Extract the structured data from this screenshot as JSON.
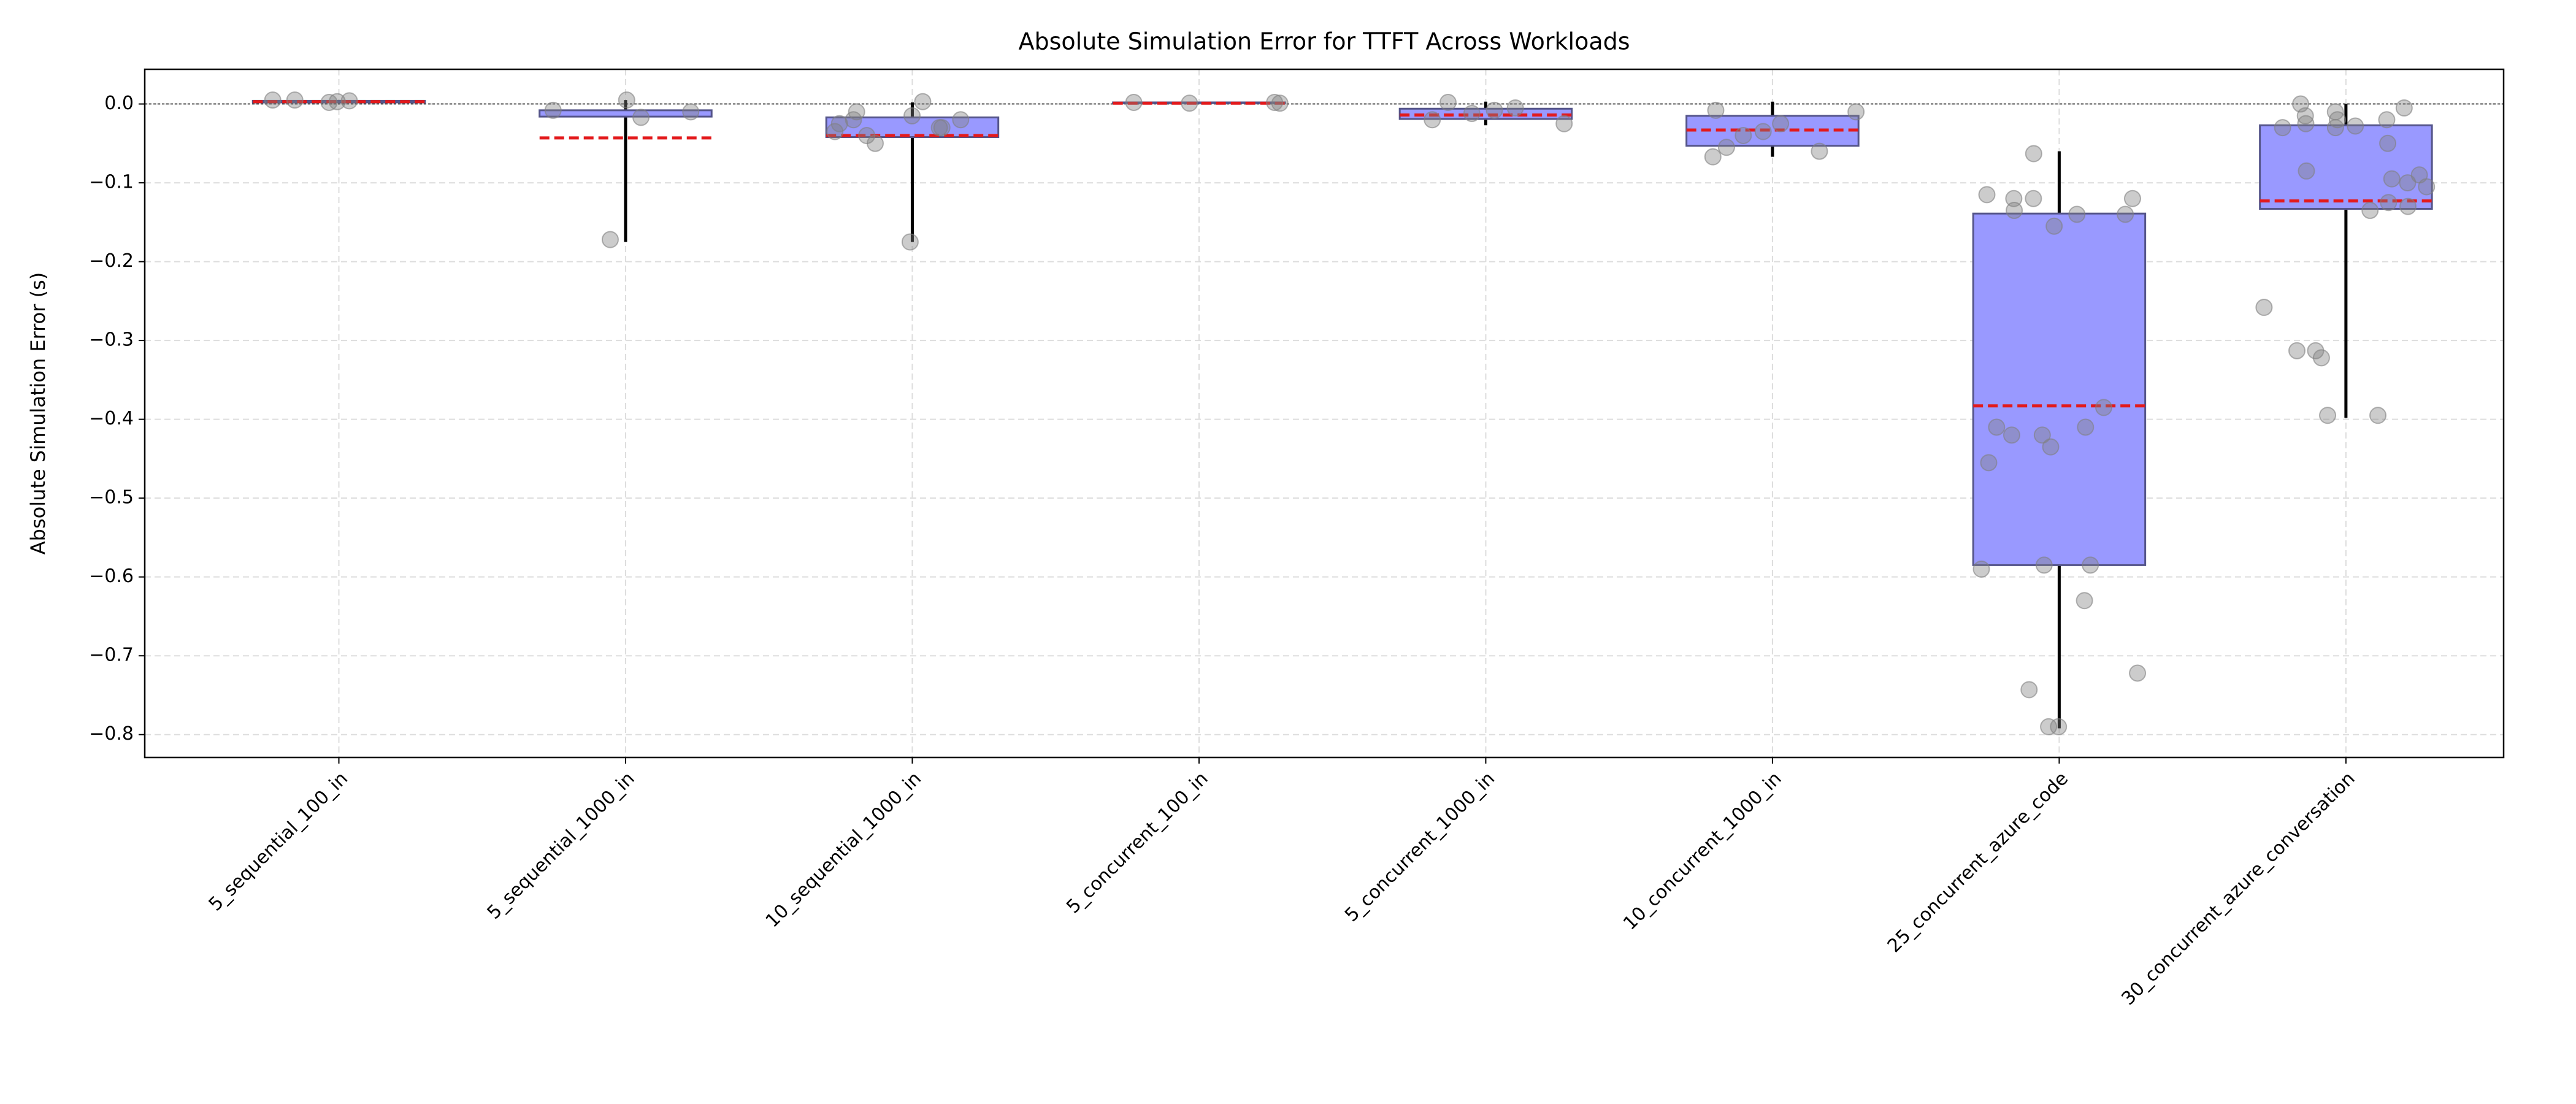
{
  "chart_data": {
    "type": "box",
    "title": "Absolute Simulation Error for TTFT Across Workloads",
    "ylabel": "Absolute Simulation Error (s)",
    "categories": [
      "5_sequential_100_in",
      "5_sequential_1000_in",
      "10_sequential_1000_in",
      "5_concurrent_100_in",
      "5_concurrent_1000_in",
      "10_concurrent_1000_in",
      "25_concurrent_azure_code",
      "30_concurrent_azure_conversation"
    ],
    "boxes": [
      {
        "q1": 0.002,
        "q3": 0.004,
        "mean": 0.003,
        "whisker_low": 0.002,
        "whisker_high": 0.005
      },
      {
        "q1": -0.016,
        "q3": -0.008,
        "mean": -0.043,
        "whisker_low": -0.175,
        "whisker_high": 0.005
      },
      {
        "q1": -0.042,
        "q3": -0.017,
        "mean": -0.04,
        "whisker_low": -0.175,
        "whisker_high": 0.002
      },
      {
        "q1": 0.001,
        "q3": 0.002,
        "mean": 0.001,
        "whisker_low": 0.001,
        "whisker_high": 0.002
      },
      {
        "q1": -0.019,
        "q3": -0.006,
        "mean": -0.014,
        "whisker_low": -0.027,
        "whisker_high": 0.003
      },
      {
        "q1": -0.053,
        "q3": -0.015,
        "mean": -0.033,
        "whisker_low": -0.067,
        "whisker_high": 0.003
      },
      {
        "q1": -0.585,
        "q3": -0.139,
        "mean": -0.383,
        "whisker_low": -0.792,
        "whisker_high": -0.06
      },
      {
        "q1": -0.133,
        "q3": -0.027,
        "mean": -0.123,
        "whisker_low": -0.398,
        "whisker_high": 0.0
      }
    ],
    "points": [
      [
        0.003,
        0.004,
        0.005,
        0.005,
        0.002
      ],
      [
        0.005,
        -0.008,
        -0.01,
        -0.017,
        -0.172
      ],
      [
        -0.05,
        -0.02,
        -0.03,
        -0.025,
        -0.015,
        -0.04,
        -0.03,
        -0.02,
        0.003,
        -0.175,
        -0.01,
        -0.035
      ],
      [
        0.002,
        0.001,
        0.002,
        0.001
      ],
      [
        -0.025,
        -0.02,
        -0.012,
        -0.008,
        -0.005,
        0.002
      ],
      [
        -0.008,
        -0.01,
        -0.035,
        -0.055,
        -0.025,
        -0.04,
        -0.067,
        -0.06
      ],
      [
        -0.063,
        -0.12,
        -0.115,
        -0.12,
        -0.135,
        -0.14,
        -0.155,
        -0.12,
        -0.14,
        -0.42,
        -0.385,
        -0.41,
        -0.41,
        -0.42,
        -0.435,
        -0.455,
        -0.59,
        -0.585,
        -0.585,
        -0.63,
        -0.722,
        -0.743,
        -0.79,
        -0.79
      ],
      [
        -0.01,
        -0.005,
        -0.02,
        -0.03,
        -0.015,
        0.0,
        -0.05,
        -0.03,
        -0.085,
        -0.095,
        -0.1,
        -0.105,
        -0.09,
        -0.13,
        -0.125,
        -0.135,
        -0.028,
        -0.258,
        -0.313,
        -0.322,
        -0.313,
        -0.395,
        -0.395,
        -0.02,
        -0.025
      ]
    ],
    "reference_line": 0,
    "ylim": [
      -0.829,
      0.044
    ],
    "yticks": [
      {
        "value": 0,
        "label": "0.0"
      },
      {
        "value": -0.1,
        "label": "−0.1"
      },
      {
        "value": -0.2,
        "label": "−0.2"
      },
      {
        "value": -0.3,
        "label": "−0.3"
      },
      {
        "value": -0.4,
        "label": "−0.4"
      },
      {
        "value": -0.5,
        "label": "−0.5"
      },
      {
        "value": -0.6,
        "label": "−0.6"
      },
      {
        "value": -0.7,
        "label": "−0.7"
      },
      {
        "value": -0.8,
        "label": "−0.8"
      }
    ],
    "grid": true,
    "box_color": "#9999ff",
    "box_edge_color": "#55558a",
    "mean_color": "#e31a1c",
    "whisker_color": "#000000",
    "point_color": "#808080"
  }
}
